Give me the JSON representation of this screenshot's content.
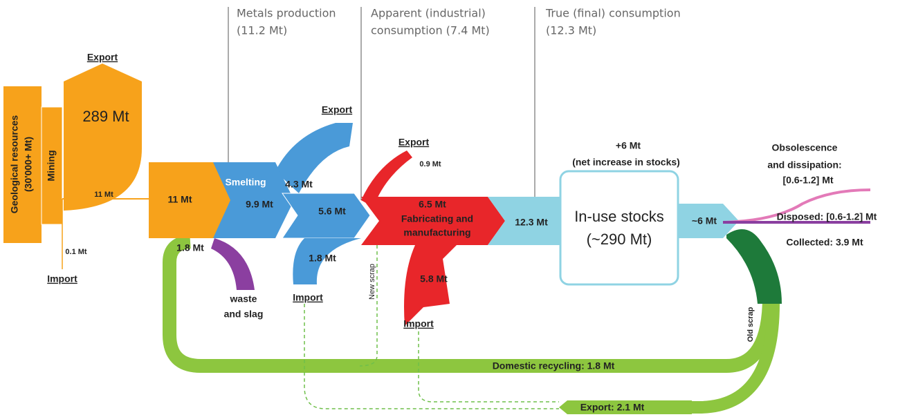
{
  "headers": [
    [
      "Metals production",
      "(11.2 Mt)"
    ],
    [
      "Apparent (industrial)",
      "consumption (7.4 Mt)"
    ],
    [
      "True (final) consumption",
      "(12.3 Mt)"
    ]
  ],
  "mining": {
    "resources": "Geological resources",
    "resources_amount": "(30'000+ Mt)",
    "mining": "Mining",
    "export": "Export",
    "export_amount": "289 Mt",
    "flow": "11 Mt",
    "import_amount": "0.1 Mt",
    "import": "Import"
  },
  "smelting": {
    "input": "11 Mt",
    "label": "Smelting",
    "amount": "9.9 Mt",
    "export_amount": "4.3 Mt",
    "export": "Export",
    "output": "5.6 Mt",
    "recycled": "1.8 Mt",
    "waste": [
      "waste",
      "and slag"
    ],
    "import_amount": "1.8 Mt",
    "import": "Import"
  },
  "fabrication": {
    "export": "Export",
    "export_amount": "0.9 Mt",
    "amount": "6.5 Mt",
    "label": [
      "Fabricating and",
      "manufacturing"
    ],
    "import_amount": "5.8 Mt",
    "import": "Import",
    "new_scrap": "New scrap"
  },
  "use": {
    "input": "12.3 Mt",
    "increase": "+6 Mt",
    "increase_note": "(net increase in stocks)",
    "stocks": "In-use stocks",
    "stocks_amount": "(~290 Mt)",
    "output": "~6 Mt"
  },
  "end_of_life": {
    "obsolescence": [
      "Obsolescence",
      "and dissipation:",
      "[0.6-1.2] Mt"
    ],
    "disposed": "Disposed: [0.6-1.2] Mt",
    "collected": "Collected: 3.9 Mt",
    "old_scrap": "Old scrap",
    "domestic_recycling": "Domestic recycling: 1.8 Mt",
    "export": "Export: 2.1 Mt"
  }
}
